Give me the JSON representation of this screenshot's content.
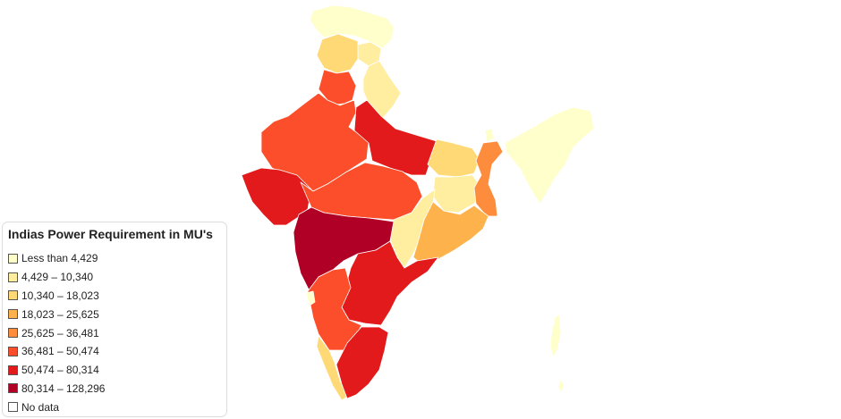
{
  "chart_data": {
    "type": "choropleth",
    "title": "Indias Power Requirement in MU's",
    "legend_position": "bottom-left",
    "legend": [
      {
        "label": "Less than 4,429",
        "color": "#ffffcc"
      },
      {
        "label": "4,429 – 10,340",
        "color": "#ffeda0"
      },
      {
        "label": "10,340 – 18,023",
        "color": "#fed976"
      },
      {
        "label": "18,023 – 25,625",
        "color": "#feb24c"
      },
      {
        "label": "25,625 – 36,481",
        "color": "#fd8d3c"
      },
      {
        "label": "36,481 – 50,474",
        "color": "#fc4e2a"
      },
      {
        "label": "50,474 – 80,314",
        "color": "#e31a1c"
      },
      {
        "label": "80,314 – 128,296",
        "color": "#b10026"
      },
      {
        "label": "No data",
        "color": "#ffffff"
      }
    ],
    "regions": [
      {
        "name": "jammu-kashmir",
        "class": 0
      },
      {
        "name": "himachal-pradesh",
        "class": 1
      },
      {
        "name": "punjab",
        "class": 2
      },
      {
        "name": "uttarakhand",
        "class": 1
      },
      {
        "name": "haryana",
        "class": 5
      },
      {
        "name": "delhi",
        "class": 1
      },
      {
        "name": "rajasthan",
        "class": 5
      },
      {
        "name": "uttar-pradesh",
        "class": 6
      },
      {
        "name": "gujarat",
        "class": 6
      },
      {
        "name": "madhya-pradesh",
        "class": 5
      },
      {
        "name": "bihar",
        "class": 2
      },
      {
        "name": "jharkhand",
        "class": 1
      },
      {
        "name": "west-bengal",
        "class": 4
      },
      {
        "name": "sikkim",
        "class": 0
      },
      {
        "name": "northeast",
        "class": 0
      },
      {
        "name": "chhattisgarh",
        "class": 1
      },
      {
        "name": "odisha",
        "class": 3
      },
      {
        "name": "maharashtra",
        "class": 7
      },
      {
        "name": "telangana-andhra",
        "class": 6
      },
      {
        "name": "karnataka",
        "class": 5
      },
      {
        "name": "goa",
        "class": 0
      },
      {
        "name": "kerala",
        "class": 2
      },
      {
        "name": "tamil-nadu",
        "class": 6
      },
      {
        "name": "andaman-nicobar",
        "class": 0
      },
      {
        "name": "lakshadweep",
        "class": 8
      }
    ]
  }
}
